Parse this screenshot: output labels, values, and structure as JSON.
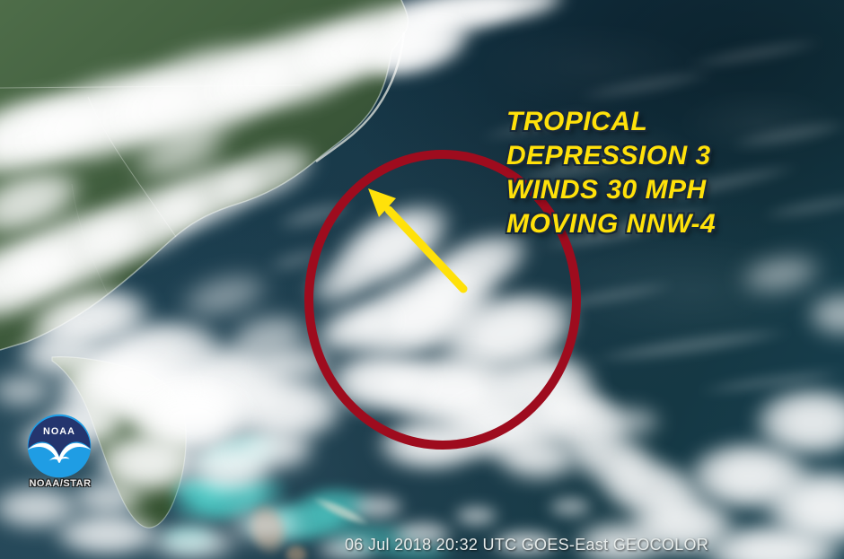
{
  "annotation": {
    "lines": [
      "TROPICAL",
      "DEPRESSION 3",
      "WINDS 30 MPH",
      "MOVING NNW-4"
    ],
    "text_color": "#ffe10a",
    "outline_color": "#16283a",
    "circle_color": "#9e0c1e",
    "arrow_color": "#ffe10a"
  },
  "status_bar": {
    "timestamp": "06 Jul 2018 20:32 UTC GOES-East GEOCOLOR",
    "text_color": "#e6ebea"
  },
  "logo": {
    "text": "NOAA",
    "caption": "NOAA/STAR",
    "navy_color": "#24356e",
    "blue_color": "#1f9de4"
  },
  "scene_palette": {
    "ocean": "#143441",
    "land": "#3f5e41",
    "cloud": "#f4f7f6",
    "shallow_water": "#4ecdc8",
    "island": "#8b8070"
  }
}
